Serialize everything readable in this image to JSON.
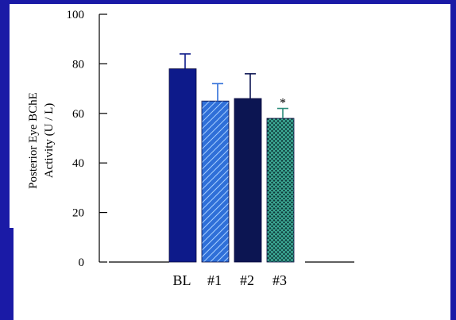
{
  "chart_data": {
    "type": "bar",
    "categories": [
      "BL",
      "#1",
      "#2",
      "#3"
    ],
    "values": [
      78,
      65,
      66,
      58
    ],
    "error_bars": [
      6,
      7,
      10,
      4
    ],
    "ylabel_lines": [
      "Posterior Eye BChE",
      "Activity (U / L)"
    ],
    "ylim": [
      0,
      100
    ],
    "yticks": [
      0,
      20,
      40,
      60,
      80,
      100
    ],
    "annotations": [
      {
        "category": "#3",
        "text": "*"
      }
    ],
    "bar_colors": [
      "#0d1a8a",
      "#2f6fd8",
      "#0c1552",
      "#2a8c7a"
    ],
    "bar_patterns": [
      "solid",
      "diagonal-hatch",
      "solid",
      "crosshatch"
    ],
    "grid": false,
    "legend": "none"
  },
  "frame": {
    "border_color": "#1a1aa6"
  }
}
